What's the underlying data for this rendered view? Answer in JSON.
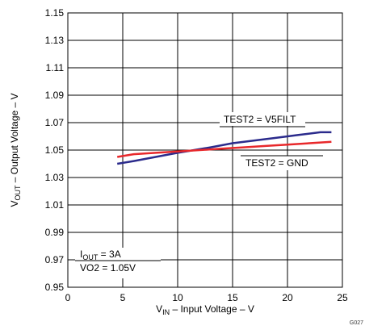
{
  "chart_data": {
    "type": "line",
    "xlabel": {
      "main": "V",
      "sub": "IN",
      "rest": " – Input Voltage – V"
    },
    "ylabel": {
      "main": "V",
      "sub": "OUT",
      "rest": " – Output Voltage – V"
    },
    "xlim": [
      0,
      25
    ],
    "ylim": [
      0.95,
      1.15
    ],
    "x_ticks": [
      "0",
      "5",
      "10",
      "15",
      "20",
      "25"
    ],
    "y_ticks": [
      "0.95",
      "0.97",
      "0.99",
      "1.01",
      "1.03",
      "1.05",
      "1.07",
      "1.09",
      "1.11",
      "1.13",
      "1.15"
    ],
    "x_tick_values": [
      0,
      5,
      10,
      15,
      20,
      25
    ],
    "y_tick_values": [
      0.95,
      0.97,
      0.99,
      1.01,
      1.03,
      1.05,
      1.07,
      1.09,
      1.11,
      1.13,
      1.15
    ],
    "grid": true,
    "series": [
      {
        "name": "TEST2 = V5FILT",
        "color": "#2b2b8c",
        "x": [
          4.5,
          6,
          8,
          10,
          11.5,
          13,
          15,
          17,
          19,
          21,
          23,
          24
        ],
        "y": [
          1.04,
          1.042,
          1.045,
          1.048,
          1.05,
          1.052,
          1.055,
          1.057,
          1.059,
          1.061,
          1.063,
          1.063
        ]
      },
      {
        "name": "TEST2 = GND",
        "color": "#e8282b",
        "x": [
          4.5,
          6,
          8,
          10,
          12,
          14,
          16,
          18,
          20,
          22,
          24
        ],
        "y": [
          1.045,
          1.047,
          1.048,
          1.049,
          1.05,
          1.051,
          1.052,
          1.053,
          1.054,
          1.055,
          1.056
        ]
      }
    ],
    "annotations": [
      {
        "text": "TEST2 = V5FILT",
        "series": 0
      },
      {
        "text": "TEST2 = GND",
        "series": 1
      }
    ],
    "conditions": {
      "line1": {
        "main": "I",
        "sub": "OUT",
        "rest": " = 3A"
      },
      "line2": "VO2 = 1.05V"
    },
    "figure_code": "G027"
  }
}
